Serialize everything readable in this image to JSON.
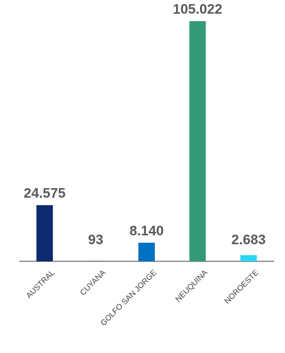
{
  "chart_data": {
    "type": "bar",
    "title": "",
    "xlabel": "",
    "ylabel": "",
    "categories": [
      "AUSTRAL",
      "CUYANA",
      "GOLFO SAN JORGE",
      "NEUQUINA",
      "NOROESTE"
    ],
    "values": [
      24575,
      93,
      8140,
      105022,
      2683
    ],
    "value_labels": [
      "24.575",
      "93",
      "8.140",
      "105.022",
      "2.683"
    ],
    "colors": [
      "#0d2a6e",
      "#2b3f8c",
      "#0070c0",
      "#339977",
      "#2ad4f2"
    ],
    "ylim": [
      0,
      105022
    ],
    "grid": false,
    "legend": "none",
    "label_color": "#595959",
    "axis_color": "#595959"
  }
}
